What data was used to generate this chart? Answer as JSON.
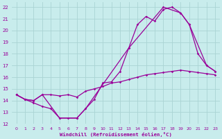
{
  "xlabel": "Windchill (Refroidissement éolien,°C)",
  "bg_color": "#c8ecec",
  "grid_color": "#aad4d4",
  "line_color": "#990099",
  "xlim": [
    -0.5,
    23.5
  ],
  "ylim": [
    12,
    22.4
  ],
  "xticks": [
    0,
    1,
    2,
    3,
    4,
    5,
    6,
    7,
    8,
    9,
    10,
    11,
    12,
    13,
    14,
    15,
    16,
    17,
    18,
    19,
    20,
    21,
    22,
    23
  ],
  "yticks": [
    12,
    13,
    14,
    15,
    16,
    17,
    18,
    19,
    20,
    21,
    22
  ],
  "series1": [
    [
      0,
      14.5
    ],
    [
      1,
      14.1
    ],
    [
      2,
      13.8
    ],
    [
      3,
      13.5
    ],
    [
      4,
      13.3
    ],
    [
      5,
      12.5
    ],
    [
      6,
      12.5
    ],
    [
      7,
      12.5
    ],
    [
      8,
      13.3
    ],
    [
      9,
      14.1
    ],
    [
      10,
      15.5
    ],
    [
      11,
      15.6
    ],
    [
      12,
      16.5
    ],
    [
      13,
      18.5
    ],
    [
      14,
      20.5
    ],
    [
      15,
      21.2
    ],
    [
      16,
      20.8
    ],
    [
      17,
      21.8
    ],
    [
      18,
      22.0
    ],
    [
      19,
      21.5
    ],
    [
      20,
      20.5
    ],
    [
      21,
      18.0
    ],
    [
      22,
      17.0
    ],
    [
      23,
      16.5
    ]
  ],
  "series2": [
    [
      0,
      14.5
    ],
    [
      1,
      14.1
    ],
    [
      2,
      14.0
    ],
    [
      3,
      14.5
    ],
    [
      4,
      14.5
    ],
    [
      5,
      14.4
    ],
    [
      6,
      14.5
    ],
    [
      7,
      14.3
    ],
    [
      8,
      14.8
    ],
    [
      9,
      15.0
    ],
    [
      10,
      15.2
    ],
    [
      11,
      15.5
    ],
    [
      12,
      15.6
    ],
    [
      13,
      15.8
    ],
    [
      14,
      16.0
    ],
    [
      15,
      16.2
    ],
    [
      16,
      16.3
    ],
    [
      17,
      16.4
    ],
    [
      18,
      16.5
    ],
    [
      19,
      16.6
    ],
    [
      20,
      16.5
    ],
    [
      21,
      16.4
    ],
    [
      22,
      16.3
    ],
    [
      23,
      16.2
    ]
  ],
  "series3": [
    [
      0,
      14.5
    ],
    [
      1,
      14.1
    ],
    [
      2,
      14.0
    ],
    [
      3,
      14.5
    ],
    [
      5,
      12.5
    ],
    [
      7,
      12.5
    ],
    [
      8,
      13.3
    ],
    [
      13,
      18.5
    ],
    [
      17,
      22.0
    ],
    [
      19,
      21.5
    ],
    [
      20,
      20.5
    ],
    [
      22,
      17.0
    ],
    [
      23,
      16.5
    ]
  ]
}
